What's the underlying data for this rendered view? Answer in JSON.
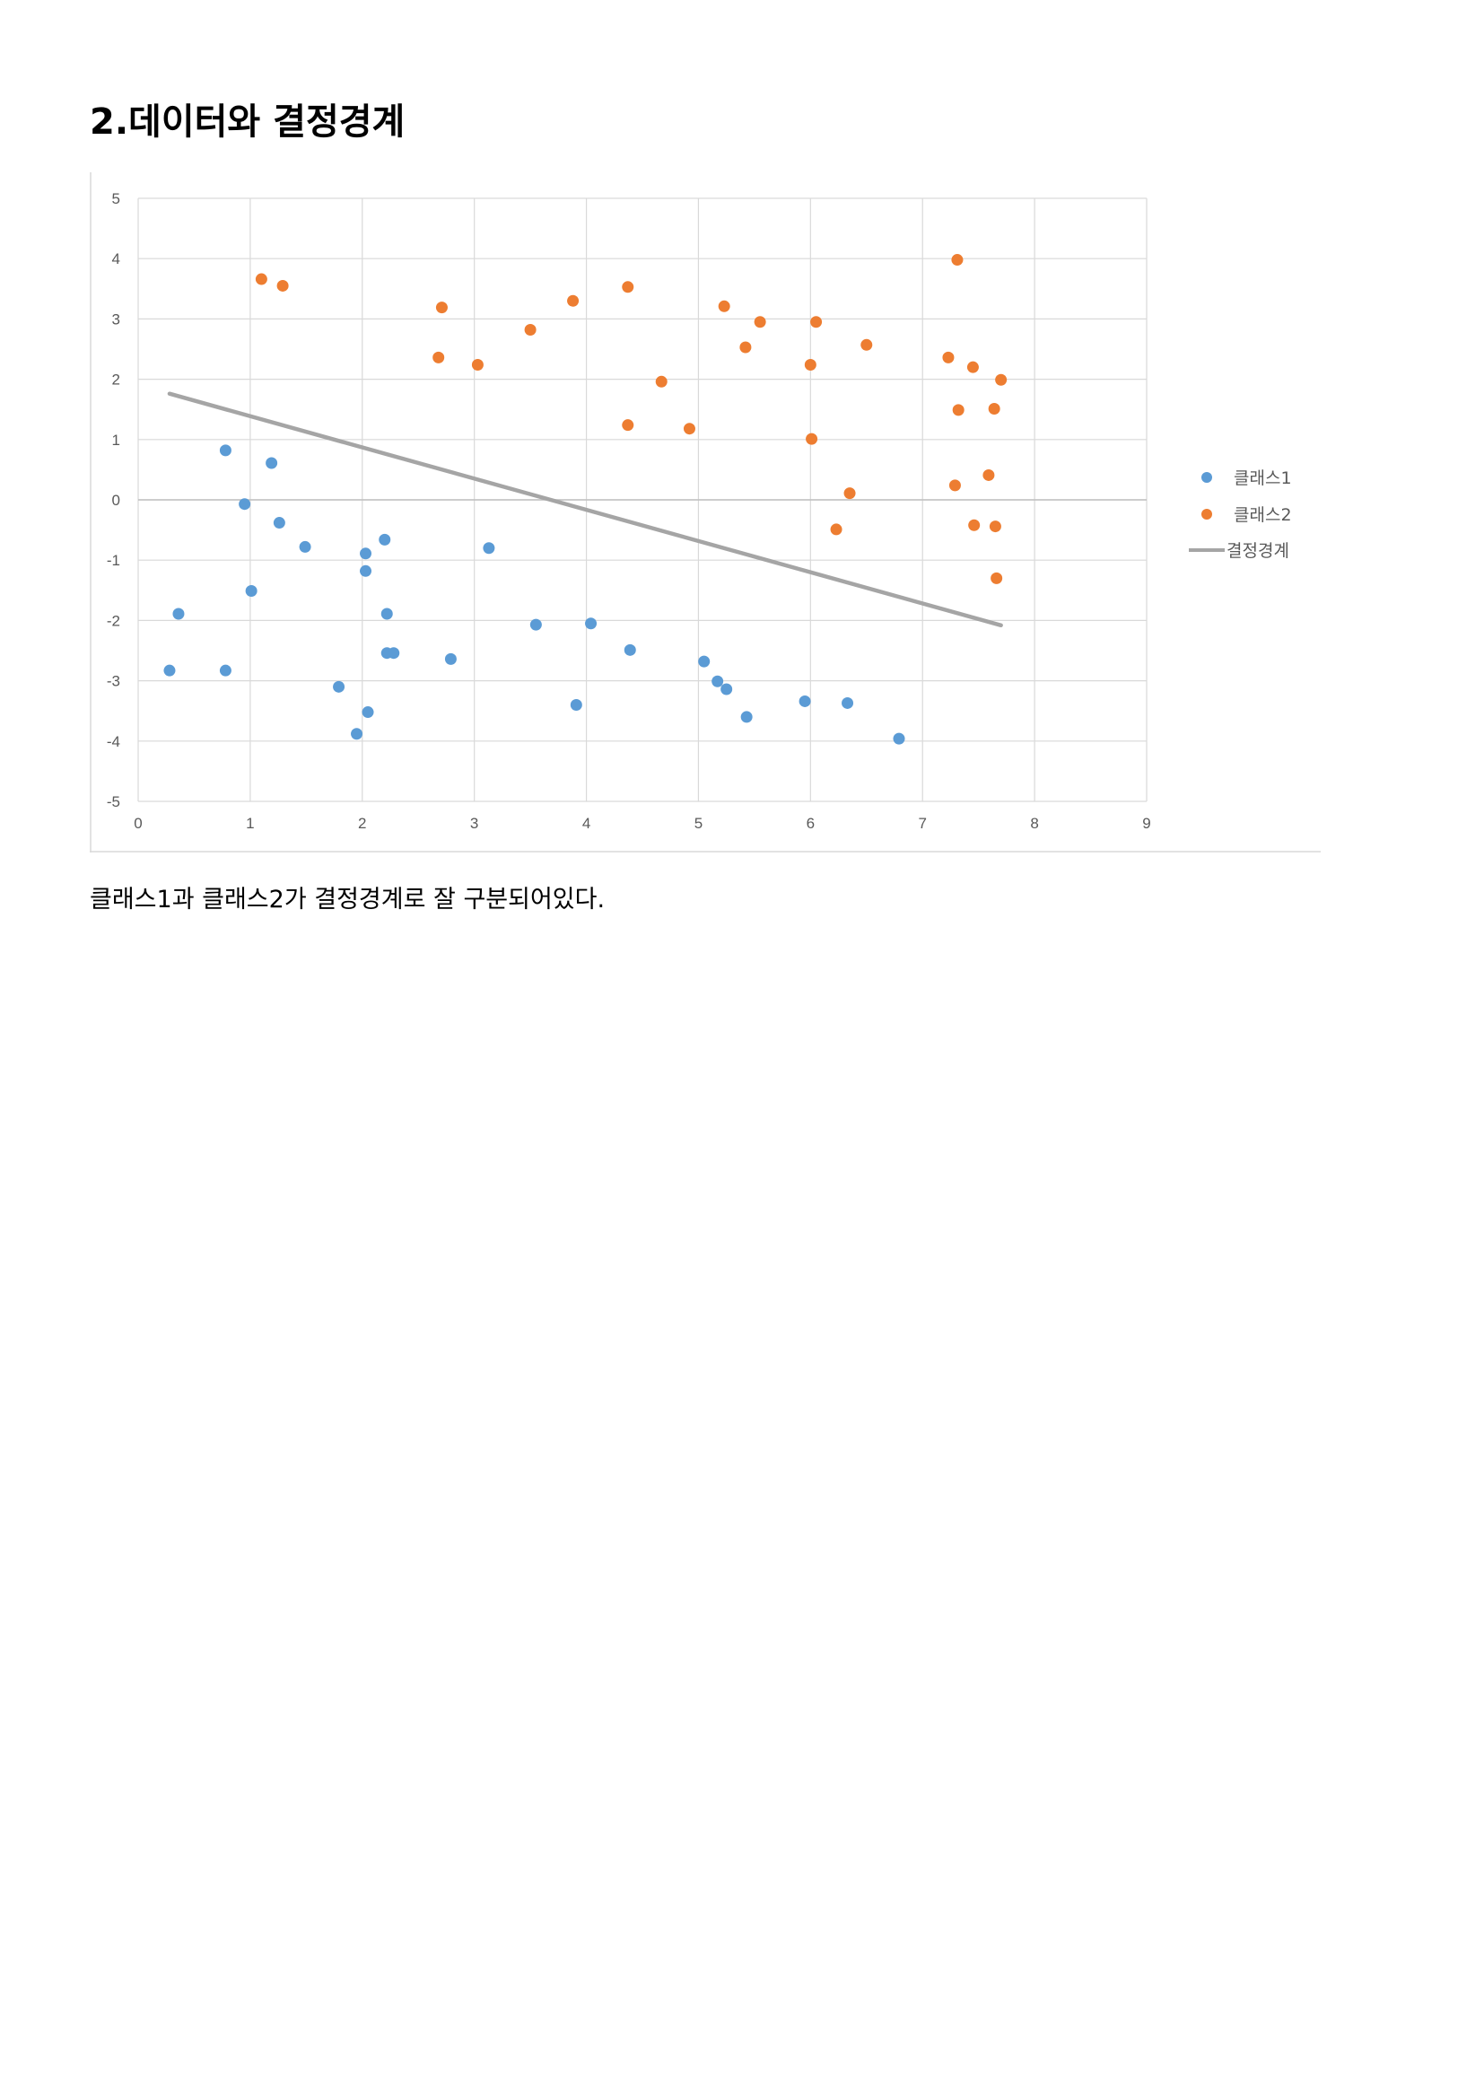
{
  "heading": "2.데이터와 결정경계",
  "caption": "클래스1과 클래스2가 결정경계로 잘 구분되어있다.",
  "colors": {
    "class1": "#5B9BD5",
    "class2": "#ED7D31",
    "boundary": "#A5A5A5",
    "grid": "#D9D9D9",
    "axis": "#595959"
  },
  "chart_data": {
    "type": "scatter",
    "title": "",
    "xlabel": "",
    "ylabel": "",
    "xlim": [
      0,
      9
    ],
    "ylim": [
      -5,
      5
    ],
    "x_ticks": [
      "0",
      "1",
      "2",
      "3",
      "4",
      "5",
      "6",
      "7",
      "8",
      "9"
    ],
    "y_ticks": [
      "5",
      "4",
      "3",
      "2",
      "1",
      "0",
      "-1",
      "-2",
      "-3",
      "-4",
      "-5"
    ],
    "grid": true,
    "legend_position": "right",
    "series": [
      {
        "name": "클래스1",
        "kind": "scatter",
        "color": "#5B9BD5",
        "points": [
          [
            0.28,
            -2.83
          ],
          [
            0.36,
            -1.89
          ],
          [
            0.78,
            0.82
          ],
          [
            0.78,
            -2.83
          ],
          [
            0.95,
            -0.07
          ],
          [
            1.01,
            -1.51
          ],
          [
            1.19,
            0.61
          ],
          [
            1.26,
            -0.38
          ],
          [
            1.49,
            -0.78
          ],
          [
            1.79,
            -3.1
          ],
          [
            1.95,
            -3.88
          ],
          [
            2.03,
            -0.89
          ],
          [
            2.03,
            -1.18
          ],
          [
            2.05,
            -3.52
          ],
          [
            2.2,
            -0.66
          ],
          [
            2.22,
            -1.89
          ],
          [
            2.22,
            -2.54
          ],
          [
            2.28,
            -2.54
          ],
          [
            2.79,
            -2.64
          ],
          [
            3.13,
            -0.8
          ],
          [
            3.55,
            -2.07
          ],
          [
            3.91,
            -3.4
          ],
          [
            4.04,
            -2.05
          ],
          [
            4.39,
            -2.49
          ],
          [
            5.05,
            -2.68
          ],
          [
            5.17,
            -3.01
          ],
          [
            5.25,
            -3.14
          ],
          [
            5.43,
            -3.6
          ],
          [
            5.95,
            -3.34
          ],
          [
            6.33,
            -3.37
          ],
          [
            6.79,
            -3.96
          ]
        ]
      },
      {
        "name": "클래스2",
        "kind": "scatter",
        "color": "#ED7D31",
        "points": [
          [
            1.1,
            3.66
          ],
          [
            1.29,
            3.55
          ],
          [
            2.68,
            2.36
          ],
          [
            2.71,
            3.19
          ],
          [
            3.03,
            2.24
          ],
          [
            3.5,
            2.82
          ],
          [
            3.88,
            3.3
          ],
          [
            4.37,
            3.53
          ],
          [
            4.37,
            1.24
          ],
          [
            4.67,
            1.96
          ],
          [
            4.92,
            1.18
          ],
          [
            5.23,
            3.21
          ],
          [
            5.42,
            2.53
          ],
          [
            5.55,
            2.95
          ],
          [
            6.0,
            2.24
          ],
          [
            6.01,
            1.01
          ],
          [
            6.05,
            2.95
          ],
          [
            6.23,
            -0.49
          ],
          [
            6.35,
            0.11
          ],
          [
            6.5,
            2.57
          ],
          [
            7.23,
            2.36
          ],
          [
            7.29,
            0.24
          ],
          [
            7.31,
            3.98
          ],
          [
            7.32,
            1.49
          ],
          [
            7.45,
            2.2
          ],
          [
            7.46,
            -0.42
          ],
          [
            7.59,
            0.41
          ],
          [
            7.64,
            1.51
          ],
          [
            7.65,
            -0.44
          ],
          [
            7.66,
            -1.3
          ],
          [
            7.7,
            1.99
          ]
        ]
      },
      {
        "name": "결정경계",
        "kind": "line",
        "color": "#A5A5A5",
        "points": [
          [
            0.28,
            1.76
          ],
          [
            7.7,
            -2.08
          ]
        ]
      }
    ]
  }
}
